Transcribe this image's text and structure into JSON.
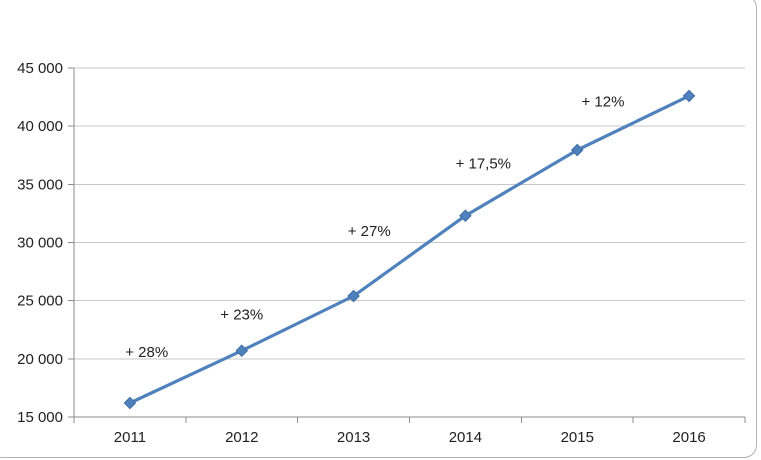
{
  "chart_data": {
    "type": "line",
    "title": "",
    "xlabel": "",
    "ylabel": "",
    "categories": [
      "2011",
      "2012",
      "2013",
      "2014",
      "2015",
      "2016"
    ],
    "series": [
      {
        "name": "",
        "values": [
          16200,
          20700,
          25400,
          32300,
          37950,
          42600
        ]
      }
    ],
    "ylim": [
      15000,
      45000
    ],
    "y_tick_interval": 5000,
    "y_tick_labels": [
      "15 000",
      "20 000",
      "25 000",
      "30 000",
      "35 000",
      "40 000",
      "45 000"
    ],
    "annotations": [
      {
        "text": "+ 28%",
        "x": 0.15,
        "y": 20600
      },
      {
        "text": "+ 23%",
        "x": 1.0,
        "y": 23800
      },
      {
        "text": "+ 27%",
        "x": 2.14,
        "y": 31000
      },
      {
        "text": "+ 17,5%",
        "x": 3.16,
        "y": 36800
      },
      {
        "text": "+ 12%",
        "x": 4.23,
        "y": 42100
      }
    ],
    "grid": true,
    "legend": false,
    "marker": "diamond",
    "line_color": "#4f81bd",
    "marker_fill": "#4f81bd",
    "marker_stroke": "#3f6fa5",
    "axis_color": "#8c8c8c",
    "grid_color": "#c6c9c9",
    "label_color": "#212121",
    "frame_border_color": "#b0b3b3"
  }
}
